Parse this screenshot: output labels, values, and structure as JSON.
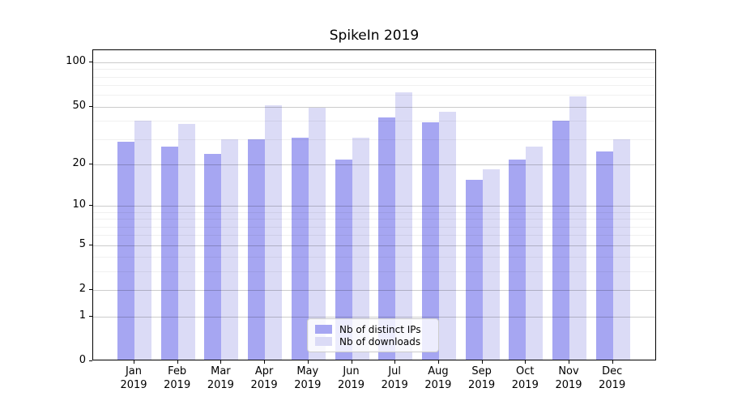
{
  "chart_data": {
    "type": "bar",
    "title": "SpikeIn 2019",
    "categories": [
      "Jan 2019",
      "Feb 2019",
      "Mar 2019",
      "Apr 2019",
      "May 2019",
      "Jun 2019",
      "Jul 2019",
      "Aug 2019",
      "Sep 2019",
      "Oct 2019",
      "Nov 2019",
      "Dec 2019"
    ],
    "series": [
      {
        "name": "Nb of distinct IPs",
        "color": "#a6a6f2",
        "values": [
          28,
          26,
          23,
          29,
          30,
          21,
          41,
          38,
          15,
          21,
          39,
          24
        ]
      },
      {
        "name": "Nb of downloads",
        "color": "#dbdbf6",
        "values": [
          39,
          37,
          29,
          50,
          48,
          30,
          61,
          45,
          18,
          26,
          57,
          29
        ]
      }
    ],
    "xlabel": "",
    "ylabel": "",
    "y_axis": {
      "scale": "log1p",
      "tick_values": [
        0,
        1,
        2,
        5,
        10,
        20,
        50,
        100
      ],
      "minor_gridline_values": [
        3,
        4,
        6,
        7,
        8,
        9,
        30,
        40,
        60,
        70,
        80,
        90
      ],
      "ylim": [
        0,
        121
      ]
    },
    "grid": true,
    "legend_position": "lower center"
  }
}
